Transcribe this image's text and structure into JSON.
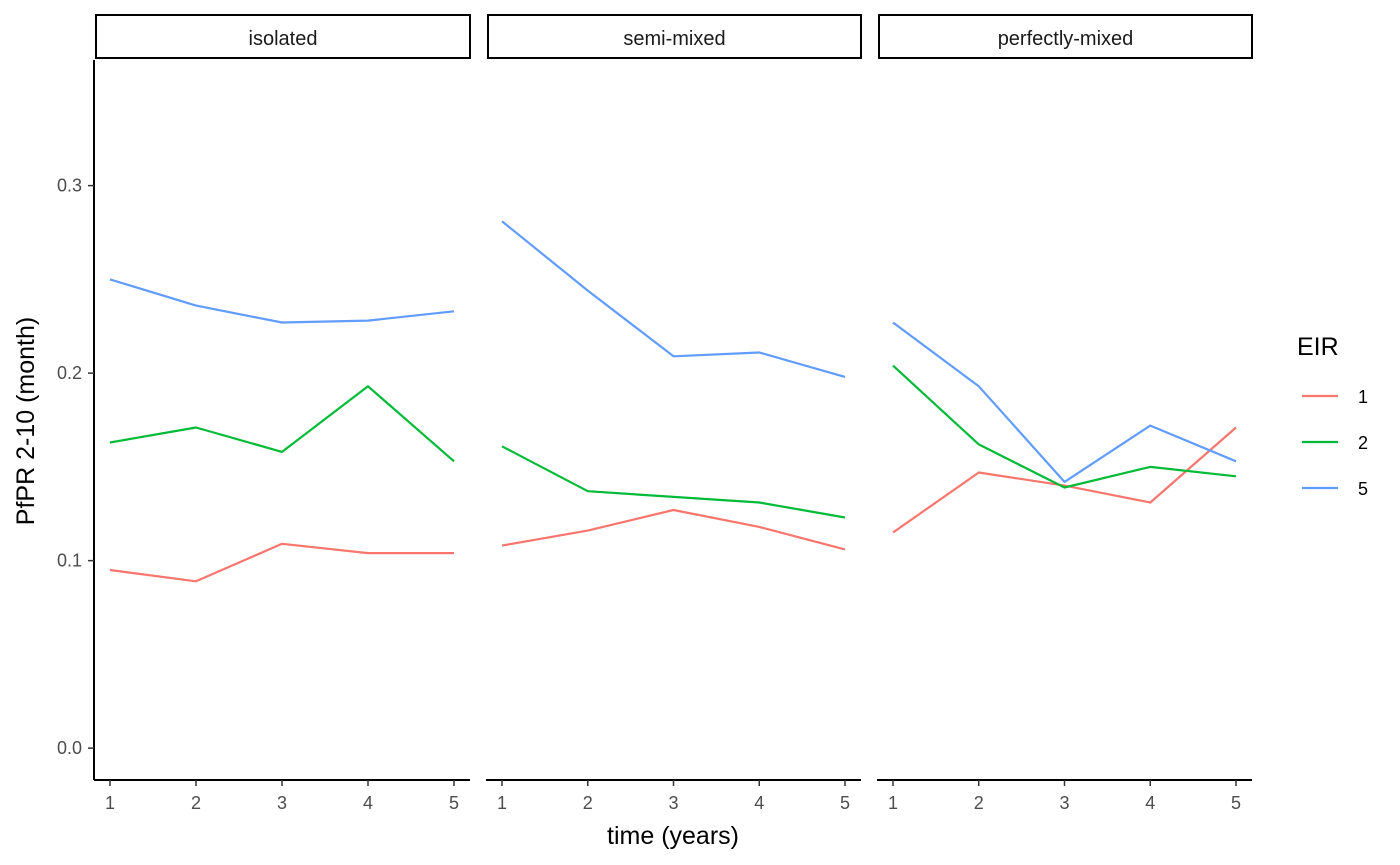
{
  "chart_data": {
    "type": "line",
    "xlabel": "time (years)",
    "ylabel": "PfPR 2-10 (month)",
    "x": [
      1,
      2,
      3,
      4,
      5
    ],
    "x_ticks": [
      "1",
      "2",
      "3",
      "4",
      "5"
    ],
    "ylim": [
      -0.017,
      0.367
    ],
    "y_ticks": [
      0.0,
      0.1,
      0.2,
      0.3
    ],
    "y_tick_labels": [
      "0.0",
      "0.1",
      "0.2",
      "0.3"
    ],
    "grid": false,
    "legend": {
      "title": "EIR",
      "position": "right",
      "entries": [
        {
          "label": "1",
          "color": "#F8766D"
        },
        {
          "label": "2",
          "color": "#00BA38"
        },
        {
          "label": "5",
          "color": "#619CFF"
        }
      ]
    },
    "panels": [
      {
        "name": "isolated",
        "series": [
          {
            "name": "1",
            "values": [
              0.095,
              0.089,
              0.109,
              0.104,
              0.104
            ]
          },
          {
            "name": "2",
            "values": [
              0.163,
              0.171,
              0.158,
              0.193,
              0.153
            ]
          },
          {
            "name": "5",
            "values": [
              0.25,
              0.236,
              0.227,
              0.228,
              0.233
            ]
          }
        ]
      },
      {
        "name": "semi-mixed",
        "series": [
          {
            "name": "1",
            "values": [
              0.108,
              0.116,
              0.127,
              0.118,
              0.106
            ]
          },
          {
            "name": "2",
            "values": [
              0.161,
              0.137,
              0.134,
              0.131,
              0.123
            ]
          },
          {
            "name": "5",
            "values": [
              0.281,
              0.244,
              0.209,
              0.211,
              0.198
            ]
          }
        ]
      },
      {
        "name": "perfectly-mixed",
        "series": [
          {
            "name": "1",
            "values": [
              0.115,
              0.147,
              0.14,
              0.131,
              0.171
            ]
          },
          {
            "name": "2",
            "values": [
              0.204,
              0.162,
              0.139,
              0.15,
              0.145
            ]
          },
          {
            "name": "5",
            "values": [
              0.227,
              0.193,
              0.142,
              0.172,
              0.153
            ]
          }
        ]
      }
    ]
  }
}
